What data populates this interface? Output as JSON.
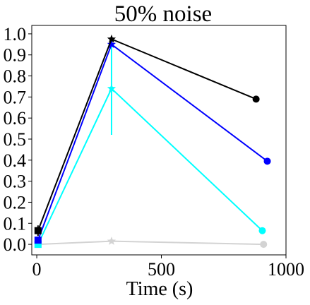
{
  "chart_data": {
    "type": "line",
    "title": "50% noise",
    "xlabel": "Time (s)",
    "ylabel": "",
    "xlim": [
      -20,
      1000
    ],
    "ylim": [
      -0.05,
      1.04
    ],
    "xticks": [
      0,
      500,
      1000
    ],
    "xtick_labels": [
      "0",
      "500",
      "1000"
    ],
    "yticks": [
      0.0,
      0.1,
      0.2,
      0.3,
      0.4,
      0.5,
      0.6,
      0.7,
      0.8,
      0.9,
      1.0
    ],
    "ytick_labels": [
      "0.0",
      "0.1",
      "0.2",
      "0.3",
      "0.4",
      "0.5",
      "0.6",
      "0.7",
      "0.8",
      "0.9",
      "1.0"
    ],
    "grid": false,
    "series": [
      {
        "color": "#d3d3d3",
        "points": [
          {
            "x": 5,
            "y": 0.0,
            "marker": "square"
          },
          {
            "x": 300,
            "y": 0.015,
            "marker": "star"
          },
          {
            "x": 910,
            "y": 0.0,
            "marker": "circle"
          }
        ],
        "error_bars": []
      },
      {
        "color": "#00ffff",
        "points": [
          {
            "x": 5,
            "y": 0.0,
            "marker": "square"
          },
          {
            "x": 300,
            "y": 0.74,
            "marker": "star"
          },
          {
            "x": 905,
            "y": 0.065,
            "marker": "circle"
          }
        ],
        "error_bars": [
          {
            "x": 300,
            "low": 0.52,
            "high": 0.96
          }
        ]
      },
      {
        "color": "#0000ff",
        "points": [
          {
            "x": 5,
            "y": 0.02,
            "marker": "square"
          },
          {
            "x": 300,
            "y": 0.95,
            "marker": "star"
          },
          {
            "x": 925,
            "y": 0.395,
            "marker": "circle"
          }
        ],
        "error_bars": []
      },
      {
        "color": "#000000",
        "points": [
          {
            "x": 5,
            "y": 0.065,
            "marker": "square"
          },
          {
            "x": 300,
            "y": 0.975,
            "marker": "star"
          },
          {
            "x": 880,
            "y": 0.69,
            "marker": "circle"
          }
        ],
        "error_bars": [
          {
            "x": 5,
            "low": 0.04,
            "high": 0.09
          }
        ]
      }
    ]
  }
}
